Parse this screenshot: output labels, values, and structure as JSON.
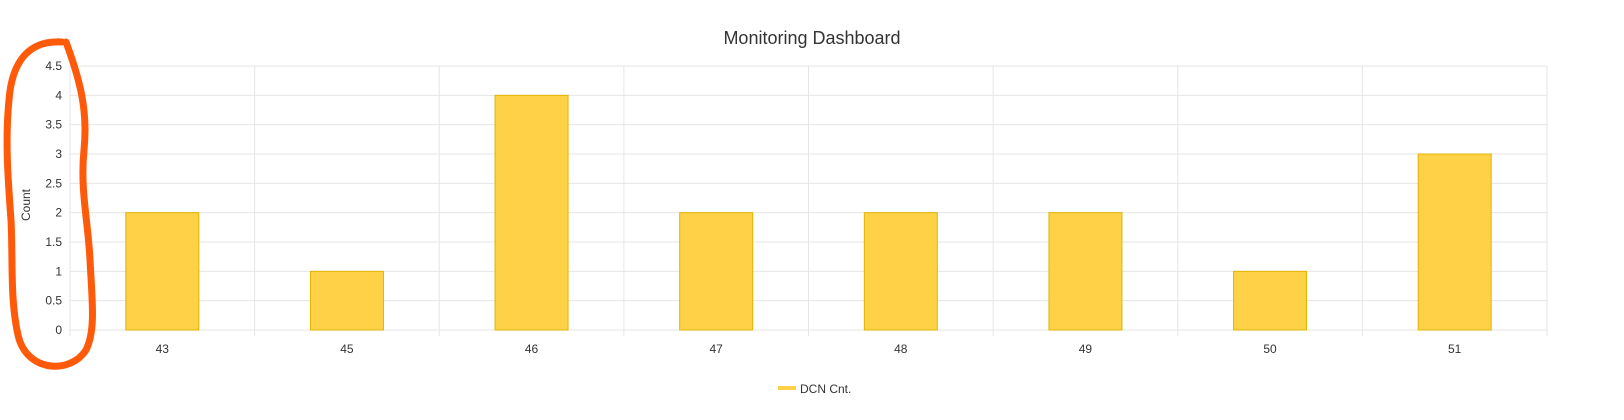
{
  "chart_data": {
    "type": "bar",
    "title": "Monitoring Dashboard",
    "xlabel": "",
    "ylabel": "Count",
    "categories": [
      "43",
      "45",
      "46",
      "47",
      "48",
      "49",
      "50",
      "51"
    ],
    "series": [
      {
        "name": "DCN Cnt.",
        "values": [
          2,
          1,
          4,
          2,
          2,
          2,
          1,
          3
        ]
      }
    ],
    "ylim": [
      0,
      4.5
    ],
    "yticks": [
      "0",
      "0.5",
      "1",
      "1.5",
      "2",
      "2.5",
      "3",
      "3.5",
      "4",
      "4.5"
    ],
    "grid": true,
    "legend_position": "bottom",
    "colors": {
      "bar_fill": "#ffd147",
      "bar_stroke": "#e0b400",
      "grid": "#e6e6e6",
      "text": "#333333",
      "annotation": "#ff5a0a"
    }
  }
}
